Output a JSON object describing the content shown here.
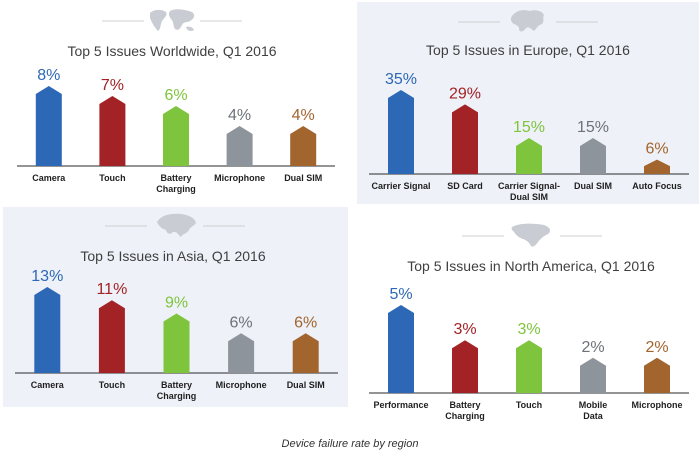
{
  "colors": {
    "blue": "#2d68b6",
    "red": "#a32226",
    "green": "#7ec43c",
    "gray": "#8e949b",
    "brown": "#a2652e",
    "map": "#c9ccd2"
  },
  "caption": "Device failure rate by region",
  "chart_data": [
    {
      "type": "bar",
      "title": "Top 5 Issues Worldwide, Q1 2016",
      "map_icon": "world-map-icon",
      "categories": [
        [
          "Camera"
        ],
        [
          "Touch"
        ],
        [
          "Battery",
          "Charging"
        ],
        [
          "Microphone"
        ],
        [
          "Dual SIM"
        ]
      ],
      "values": [
        8,
        7,
        6,
        4,
        4
      ],
      "value_labels": [
        "8%",
        "7%",
        "6%",
        "4%",
        "4%"
      ],
      "bar_colors": [
        "#2d68b6",
        "#a32226",
        "#7ec43c",
        "#8e949b",
        "#a2652e"
      ],
      "label_colors": [
        "#2d68b6",
        "#a32226",
        "#7ec43c",
        "#6d7278",
        "#a2652e"
      ],
      "ylim": [
        0,
        8
      ]
    },
    {
      "type": "bar",
      "title": "Top 5 Issues in Europe, Q1 2016",
      "map_icon": "europe-map-icon",
      "categories": [
        [
          "Carrier Signal"
        ],
        [
          "SD Card"
        ],
        [
          "Carrier Signal-",
          "Dual SIM"
        ],
        [
          "Dual SIM"
        ],
        [
          "Auto Focus"
        ]
      ],
      "values": [
        35,
        29,
        15,
        15,
        6
      ],
      "value_labels": [
        "35%",
        "29%",
        "15%",
        "15%",
        "6%"
      ],
      "bar_colors": [
        "#2d68b6",
        "#a32226",
        "#7ec43c",
        "#8e949b",
        "#a2652e"
      ],
      "label_colors": [
        "#2d68b6",
        "#a32226",
        "#7ec43c",
        "#6d7278",
        "#a2652e"
      ],
      "ylim": [
        0,
        35
      ]
    },
    {
      "type": "bar",
      "title": "Top 5 Issues in Asia, Q1 2016",
      "map_icon": "asia-map-icon",
      "categories": [
        [
          "Camera"
        ],
        [
          "Touch"
        ],
        [
          "Battery",
          "Charging"
        ],
        [
          "Microphone"
        ],
        [
          "Dual SIM"
        ]
      ],
      "values": [
        13,
        11,
        9,
        6,
        6
      ],
      "value_labels": [
        "13%",
        "11%",
        "9%",
        "6%",
        "6%"
      ],
      "bar_colors": [
        "#2d68b6",
        "#a32226",
        "#7ec43c",
        "#8e949b",
        "#a2652e"
      ],
      "label_colors": [
        "#2d68b6",
        "#a32226",
        "#7ec43c",
        "#6d7278",
        "#a2652e"
      ],
      "ylim": [
        0,
        13
      ]
    },
    {
      "type": "bar",
      "title": "Top 5 Issues in North America, Q1 2016",
      "map_icon": "north-america-map-icon",
      "categories": [
        [
          "Performance"
        ],
        [
          "Battery",
          "Charging"
        ],
        [
          "Touch"
        ],
        [
          "Mobile",
          "Data"
        ],
        [
          "Microphone"
        ]
      ],
      "values": [
        5,
        3,
        3,
        2,
        2
      ],
      "value_labels": [
        "5%",
        "3%",
        "3%",
        "2%",
        "2%"
      ],
      "bar_colors": [
        "#2d68b6",
        "#a32226",
        "#7ec43c",
        "#8e949b",
        "#a2652e"
      ],
      "label_colors": [
        "#2d68b6",
        "#a32226",
        "#7ec43c",
        "#6d7278",
        "#a2652e"
      ],
      "ylim": [
        0,
        5
      ]
    }
  ]
}
